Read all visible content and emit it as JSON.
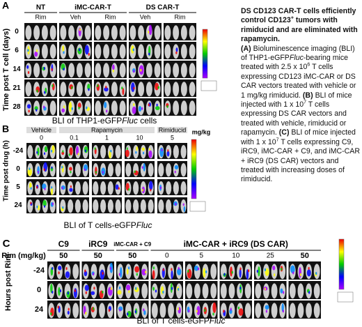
{
  "panel_a": {
    "label": "A",
    "groups": [
      "NT",
      "iMC-CAR-T",
      "DS CAR-T"
    ],
    "columns": [
      "Rim",
      "Veh",
      "Rim",
      "Veh",
      "Rim"
    ],
    "y_label": "Time post T cell (days)",
    "rows": [
      "0",
      "6",
      "14",
      "21",
      "28"
    ],
    "caption": "BLI of THP1-eGFP",
    "caption_italic": "Fluc",
    "caption_end": " cells"
  },
  "panel_b": {
    "label": "B",
    "groups": [
      "Vehicle",
      "Rapamycin",
      "Rimiducid"
    ],
    "columns": [
      "0",
      "0.1",
      "1",
      "10",
      "5"
    ],
    "unit": "mg/kg",
    "y_label": "Time post drug (h)",
    "rows": [
      "-24",
      "0",
      "5",
      "24"
    ],
    "caption": "BLI of T cells-eGFP",
    "caption_italic": "Fluc"
  },
  "panel_c": {
    "label": "C",
    "row_header": "Rim (mg/kg)",
    "groups": [
      "C9",
      "iRC9",
      "iMC-CAR + C9",
      "iMC-CAR + iRC9 (DS CAR)"
    ],
    "columns": [
      "50",
      "50",
      "50",
      "0",
      "5",
      "10",
      "25",
      "50"
    ],
    "y_label": "Hours post Rim",
    "rows": [
      "-24",
      "0",
      "24"
    ],
    "caption": "BLI of T cells-eGFP",
    "caption_italic": "Fluc"
  },
  "legend": {
    "title": [
      {
        "text": "DS CD123 CAR-T cells efficiently control CD123",
        "style": "b"
      },
      {
        "text": "+",
        "style": "sup"
      },
      {
        "text": " tumors with rimiducid and are eliminated with rapamycin.",
        "style": "b"
      }
    ],
    "body": [
      {
        "text": "(A)",
        "style": "b"
      },
      {
        "text": " Bioluminescence imaging (BLI) of THP1-eGFP",
        "style": "n"
      },
      {
        "text": "Fluc",
        "style": "i"
      },
      {
        "text": "-bearing mice treated with 2.5 x 10",
        "style": "n"
      },
      {
        "text": "6",
        "style": "sup"
      },
      {
        "text": " T cells expressing CD123 iMC-CAR or DS CAR vectors treated with vehicle or 1 mg/kg rimiducid. ",
        "style": "n"
      },
      {
        "text": "(B)",
        "style": "b"
      },
      {
        "text": " BLI of mice injected with 1 x 10",
        "style": "n"
      },
      {
        "text": "7",
        "style": "sup"
      },
      {
        "text": " T cells expressing DS CAR vectors and treated with vehicle, rimiducid or rapamycin. ",
        "style": "n"
      },
      {
        "text": "(C)",
        "style": "b"
      },
      {
        "text": " BLI of mice injected with 1 x 10",
        "style": "n"
      },
      {
        "text": "7",
        "style": "sup"
      },
      {
        "text": " T cells expressing C9, iRC9, iMC-CAR + C9, and iMC-CAR + iRC9 (DS CAR) vectors and treated with increasing doses of rimiducid.",
        "style": "n"
      }
    ]
  }
}
